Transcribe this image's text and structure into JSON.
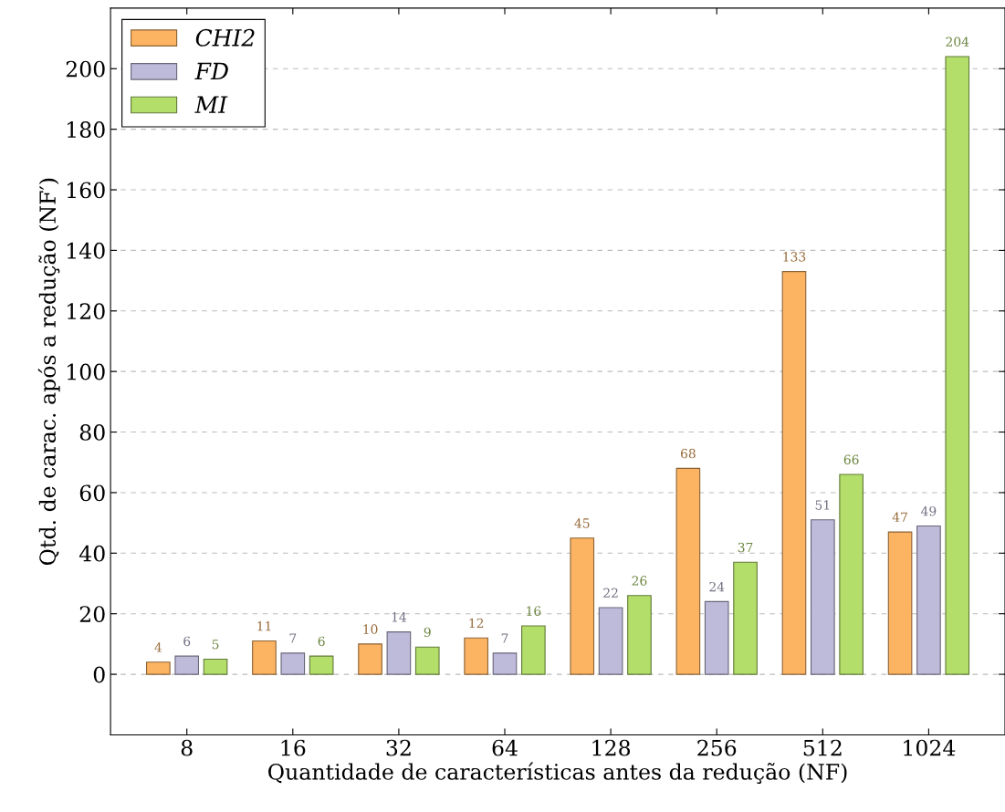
{
  "chart_data": {
    "type": "bar",
    "xlabel": "Quantidade de características antes da redução (NF)",
    "ylabel": "Qtd. de carac. após a redução (NF′)",
    "categories": [
      "8",
      "16",
      "32",
      "64",
      "128",
      "256",
      "512",
      "1024"
    ],
    "series": [
      {
        "name": "CHI2",
        "color": "#fdb462",
        "values": [
          4,
          11,
          10,
          12,
          45,
          68,
          133,
          47
        ]
      },
      {
        "name": "FD",
        "color": "#bebada",
        "values": [
          6,
          7,
          14,
          7,
          22,
          24,
          51,
          49
        ]
      },
      {
        "name": "MI",
        "color": "#b3de69",
        "values": [
          5,
          6,
          9,
          16,
          26,
          37,
          66,
          204
        ]
      }
    ],
    "ylim": [
      -20,
      220
    ],
    "yticks": [
      0,
      20,
      40,
      60,
      80,
      100,
      120,
      140,
      160,
      180,
      200
    ],
    "grid": "y",
    "legend": "top left",
    "data_labels": true
  }
}
